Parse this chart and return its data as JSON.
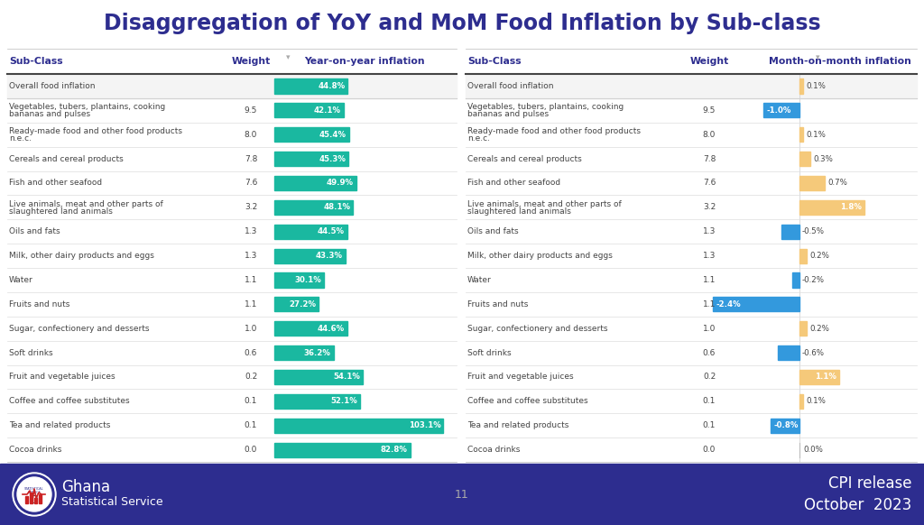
{
  "title": "Disaggregation of YoY and MoM Food Inflation by Sub-class",
  "title_color": "#2d2d8f",
  "background_color": "#ffffff",
  "footer_color": "#2d2d8f",
  "sub_classes": [
    "Overall food inflation",
    "Vegetables, tubers, plantains, cooking\nbananas and pulses",
    "Ready-made food and other food products\nn.e.c.",
    "Cereals and cereal products",
    "Fish and other seafood",
    "Live animals, meat and other parts of\nslaughtered land animals",
    "Oils and fats",
    "Milk, other dairy products and eggs",
    "Water",
    "Fruits and nuts",
    "Sugar, confectionery and desserts",
    "Soft drinks",
    "Fruit and vegetable juices",
    "Coffee and coffee substitutes",
    "Tea and related products",
    "Cocoa drinks"
  ],
  "weights": [
    "",
    "9.5",
    "8.0",
    "7.8",
    "7.6",
    "3.2",
    "1.3",
    "1.3",
    "1.1",
    "1.1",
    "1.0",
    "0.6",
    "0.2",
    "0.1",
    "0.1",
    "0.0"
  ],
  "yoy_values": [
    44.8,
    42.1,
    45.4,
    45.3,
    49.9,
    48.1,
    44.5,
    43.3,
    30.1,
    27.2,
    44.6,
    36.2,
    54.1,
    52.1,
    103.1,
    82.8
  ],
  "yoy_labels": [
    "44.8%",
    "42.1%",
    "45.4%",
    "45.3%",
    "49.9%",
    "48.1%",
    "44.5%",
    "43.3%",
    "30.1%",
    "27.2%",
    "44.6%",
    "36.2%",
    "54.1%",
    "52.1%",
    "103.1%",
    "82.8%"
  ],
  "mom_values": [
    0.1,
    -1.0,
    0.1,
    0.3,
    0.7,
    1.8,
    -0.5,
    0.2,
    -0.2,
    -2.4,
    0.2,
    -0.6,
    1.1,
    0.1,
    -0.8,
    0.0
  ],
  "mom_labels": [
    "0.1%",
    "-1.0%",
    "0.1%",
    "0.3%",
    "0.7%",
    "1.8%",
    "-0.5%",
    "0.2%",
    "-0.2%",
    "-2.4%",
    "0.2%",
    "-0.6%",
    "1.1%",
    "0.1%",
    "-0.8%",
    "0.0%"
  ],
  "yoy_bar_color": "#1ab8a0",
  "mom_positive_color": "#f5c97a",
  "mom_negative_color": "#3399dd",
  "header_col1": "Sub-Class",
  "header_col2": "Weight",
  "header_col3": "Year-on-year inflation",
  "header_col4": "Sub-Class",
  "header_col5": "Weight",
  "header_col6": "Month-on-month inflation",
  "col_header_color": "#2d2d8f",
  "row_separator_color": "#cccccc",
  "text_color": "#444444",
  "header_line_color": "#555555"
}
